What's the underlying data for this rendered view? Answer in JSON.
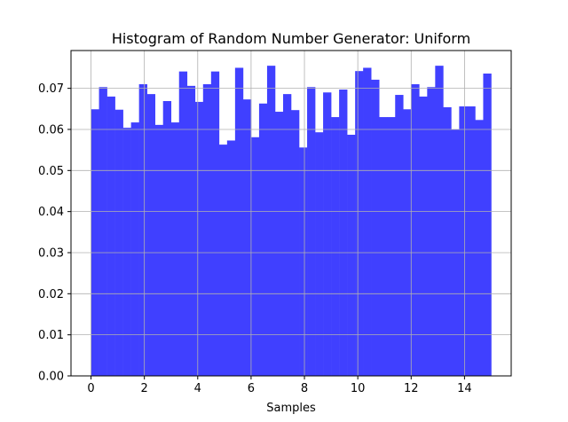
{
  "chart_data": {
    "type": "bar",
    "title": "Histogram of Random Number Generator: Uniform",
    "xlabel": "Samples",
    "ylabel": "",
    "xlim": [
      -0.75,
      15.75
    ],
    "ylim": [
      0,
      0.0792
    ],
    "grid": true,
    "bar_color": "#4040ff",
    "grid_color": "#b0b0b0",
    "x_ticks": [
      0,
      2,
      4,
      6,
      8,
      10,
      12,
      14
    ],
    "y_ticks": [
      0.0,
      0.01,
      0.02,
      0.03,
      0.04,
      0.05,
      0.06,
      0.07
    ],
    "x_tick_labels": [
      "0",
      "2",
      "4",
      "6",
      "8",
      "10",
      "12",
      "14"
    ],
    "y_tick_labels": [
      "0.00",
      "0.01",
      "0.02",
      "0.03",
      "0.04",
      "0.05",
      "0.06",
      "0.07"
    ],
    "bin_range": [
      0,
      15
    ],
    "bin_width": 0.3,
    "values": [
      0.0649,
      0.0703,
      0.068,
      0.0648,
      0.0604,
      0.0617,
      0.071,
      0.0686,
      0.0611,
      0.0669,
      0.0617,
      0.0741,
      0.0706,
      0.0667,
      0.071,
      0.0741,
      0.0563,
      0.0573,
      0.075,
      0.0673,
      0.0581,
      0.0663,
      0.0755,
      0.0643,
      0.0686,
      0.0647,
      0.0556,
      0.0703,
      0.0593,
      0.069,
      0.063,
      0.0697,
      0.0587,
      0.0742,
      0.075,
      0.0721,
      0.063,
      0.063,
      0.0684,
      0.0649,
      0.071,
      0.068,
      0.0703,
      0.0755,
      0.0654,
      0.06,
      0.0656,
      0.0656,
      0.0623,
      0.0736
    ]
  }
}
